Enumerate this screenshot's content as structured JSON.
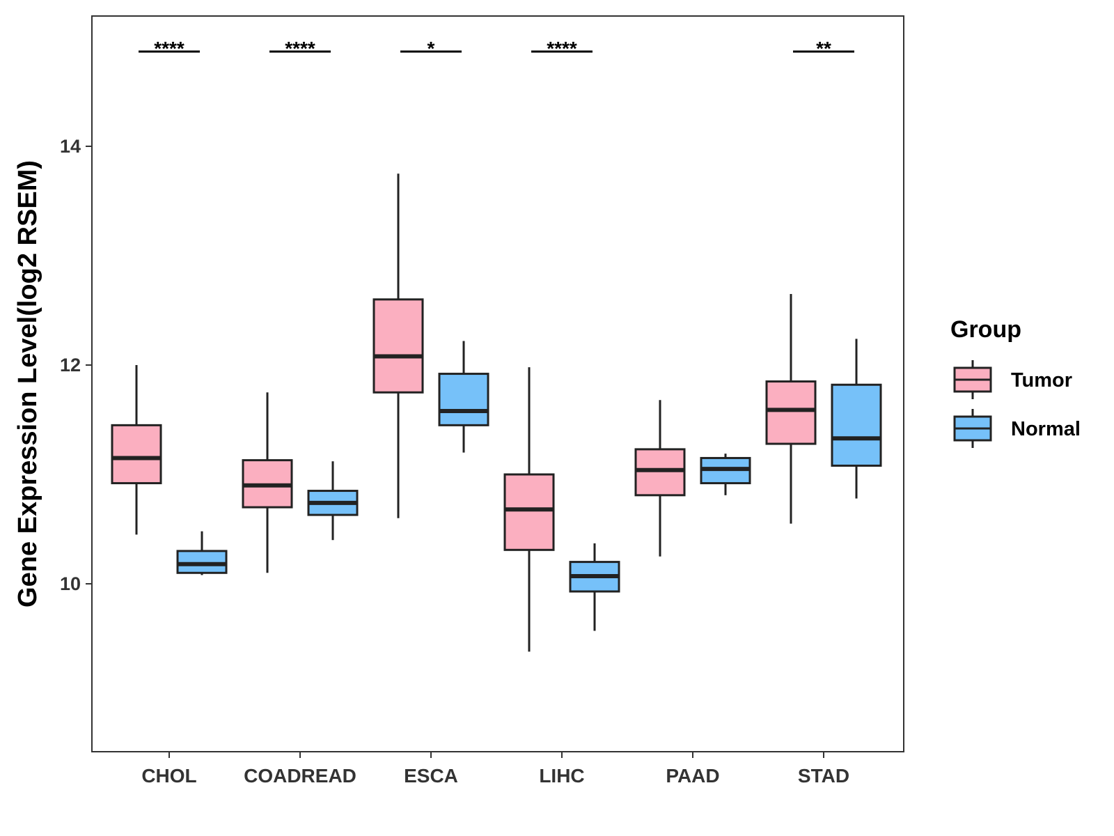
{
  "chart_data": {
    "type": "boxplot",
    "title": "",
    "xlabel": "",
    "ylabel": "Gene Expression Level(log2 RSEM)",
    "ylim": [
      8.5,
      15.2
    ],
    "yticks": [
      10,
      12,
      14
    ],
    "ytick_labels": [
      "10",
      "12",
      "14"
    ],
    "categories": [
      "CHOL",
      "COADREAD",
      "ESCA",
      "LIHC",
      "PAAD",
      "STAD"
    ],
    "legend": {
      "title": "Group",
      "position": "right",
      "entries": [
        "Tumor",
        "Normal"
      ]
    },
    "colors": {
      "Tumor": "#fbafc0",
      "Normal": "#76c1f9",
      "stroke": "#222222",
      "axis": "#333333"
    },
    "series": [
      {
        "name": "Tumor",
        "boxes": [
          {
            "min": 10.45,
            "q1": 10.92,
            "median": 11.15,
            "q3": 11.45,
            "max": 12.0
          },
          {
            "min": 10.1,
            "q1": 10.7,
            "median": 10.9,
            "q3": 11.13,
            "max": 11.75
          },
          {
            "min": 10.6,
            "q1": 11.75,
            "median": 12.08,
            "q3": 12.6,
            "max": 13.75
          },
          {
            "min": 9.38,
            "q1": 10.31,
            "median": 10.68,
            "q3": 11.0,
            "max": 11.98
          },
          {
            "min": 10.25,
            "q1": 10.81,
            "median": 11.04,
            "q3": 11.23,
            "max": 11.68
          },
          {
            "min": 10.55,
            "q1": 11.28,
            "median": 11.59,
            "q3": 11.85,
            "max": 12.65
          }
        ]
      },
      {
        "name": "Normal",
        "boxes": [
          {
            "min": 10.08,
            "q1": 10.1,
            "median": 10.18,
            "q3": 10.3,
            "max": 10.48
          },
          {
            "min": 10.4,
            "q1": 10.63,
            "median": 10.74,
            "q3": 10.85,
            "max": 11.12
          },
          {
            "min": 11.2,
            "q1": 11.45,
            "median": 11.58,
            "q3": 11.92,
            "max": 12.22
          },
          {
            "min": 9.57,
            "q1": 9.93,
            "median": 10.07,
            "q3": 10.2,
            "max": 10.37
          },
          {
            "min": 10.81,
            "q1": 10.92,
            "median": 11.05,
            "q3": 11.15,
            "max": 11.19
          },
          {
            "min": 10.78,
            "q1": 11.08,
            "median": 11.33,
            "q3": 11.82,
            "max": 12.24
          }
        ]
      }
    ],
    "significance": [
      {
        "category": "CHOL",
        "label": "****"
      },
      {
        "category": "COADREAD",
        "label": "****"
      },
      {
        "category": "ESCA",
        "label": "*"
      },
      {
        "category": "LIHC",
        "label": "****"
      },
      {
        "category": "PAAD",
        "label": ""
      },
      {
        "category": "STAD",
        "label": "**"
      }
    ]
  }
}
